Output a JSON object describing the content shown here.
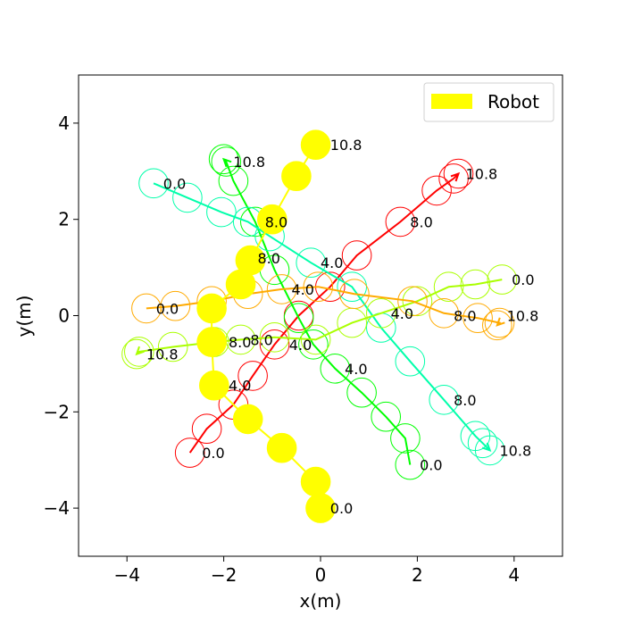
{
  "chart_data": {
    "type": "scatter",
    "xlabel": "x(m)",
    "ylabel": "y(m)",
    "xlim": [
      -5,
      5
    ],
    "ylim": [
      -5,
      5
    ],
    "xticks": [
      -4,
      -2,
      0,
      2,
      4
    ],
    "xtick_labels": [
      "−4",
      "−2",
      "0",
      "2",
      "4"
    ],
    "yticks": [
      -4,
      -2,
      0,
      2,
      4
    ],
    "ytick_labels": [
      "−4",
      "−2",
      "0",
      "2",
      "4"
    ],
    "grid": false,
    "legend": {
      "placement": "top-right",
      "entries": [
        {
          "label": "Robot",
          "color": "#ffff00"
        }
      ]
    },
    "circle_radius": 0.3,
    "robot": {
      "name": "Robot",
      "color": "#ffff00",
      "points": [
        [
          0.0,
          -4.0
        ],
        [
          -0.1,
          -3.45
        ],
        [
          -0.8,
          -2.75
        ],
        [
          -1.5,
          -2.15
        ],
        [
          -2.2,
          -1.45
        ],
        [
          -2.25,
          -0.55
        ],
        [
          -2.25,
          0.15
        ],
        [
          -1.65,
          0.65
        ],
        [
          -1.45,
          1.15
        ],
        [
          -1.0,
          2.0
        ],
        [
          -0.5,
          2.9
        ],
        [
          -0.1,
          3.55
        ]
      ],
      "time_labels": [
        {
          "text": "0.0",
          "x": 0.2,
          "y": -4.0
        },
        {
          "text": "4.0",
          "x": -1.9,
          "y": -1.45
        },
        {
          "text": "8.0",
          "x": -1.9,
          "y": -0.55
        },
        {
          "text": "8.0",
          "x": -1.3,
          "y": 1.2
        },
        {
          "text": "10.8",
          "x": 0.2,
          "y": 3.55
        }
      ]
    },
    "humans": [
      {
        "color": "#ff0000",
        "points": [
          [
            -2.7,
            -2.85
          ],
          [
            -2.35,
            -2.35
          ],
          [
            -1.8,
            -1.85
          ],
          [
            -1.4,
            -1.25
          ],
          [
            -0.95,
            -0.6
          ],
          [
            -0.45,
            0.0
          ],
          [
            0.2,
            0.6
          ],
          [
            0.75,
            1.25
          ],
          [
            1.65,
            1.95
          ],
          [
            2.4,
            2.6
          ],
          [
            2.75,
            2.85
          ],
          [
            2.85,
            2.95
          ]
        ],
        "time_labels": [
          {
            "text": "0.0",
            "x": -2.45,
            "y": -2.85
          },
          {
            "text": "4.0",
            "x": -0.65,
            "y": -0.6
          },
          {
            "text": "8.0",
            "x": 1.85,
            "y": 1.95
          },
          {
            "text": "10.8",
            "x": 3.0,
            "y": 2.95
          }
        ]
      },
      {
        "color": "#00ff00",
        "points": [
          [
            1.85,
            -3.1
          ],
          [
            1.75,
            -2.55
          ],
          [
            1.35,
            -2.1
          ],
          [
            0.85,
            -1.6
          ],
          [
            0.3,
            -1.1
          ],
          [
            -0.15,
            -0.6
          ],
          [
            -0.45,
            -0.05
          ],
          [
            -0.95,
            0.95
          ],
          [
            -1.35,
            1.95
          ],
          [
            -1.8,
            2.8
          ],
          [
            -1.95,
            3.2
          ],
          [
            -2.0,
            3.25
          ]
        ],
        "time_labels": [
          {
            "text": "0.0",
            "x": 2.05,
            "y": -3.1
          },
          {
            "text": "4.0",
            "x": 0.5,
            "y": -1.1
          },
          {
            "text": "8.0",
            "x": -1.15,
            "y": 1.95
          },
          {
            "text": "10.8",
            "x": -1.8,
            "y": 3.2
          }
        ]
      },
      {
        "color": "#00ffaa",
        "points": [
          [
            -3.45,
            2.75
          ],
          [
            -2.75,
            2.45
          ],
          [
            -2.05,
            2.15
          ],
          [
            -1.5,
            1.95
          ],
          [
            -1.05,
            1.65
          ],
          [
            -0.2,
            1.1
          ],
          [
            0.65,
            0.6
          ],
          [
            1.25,
            -0.25
          ],
          [
            1.85,
            -0.95
          ],
          [
            2.55,
            -1.75
          ],
          [
            3.2,
            -2.5
          ],
          [
            3.35,
            -2.65
          ],
          [
            3.5,
            -2.8
          ]
        ],
        "time_labels": [
          {
            "text": "0.0",
            "x": -3.25,
            "y": 2.75
          },
          {
            "text": "4.0",
            "x": 0.0,
            "y": 1.1
          },
          {
            "text": "8.0",
            "x": 2.75,
            "y": -1.75
          },
          {
            "text": "10.8",
            "x": 3.7,
            "y": -2.8
          }
        ]
      },
      {
        "color": "#aaff00",
        "points": [
          [
            3.75,
            0.75
          ],
          [
            3.2,
            0.65
          ],
          [
            2.65,
            0.6
          ],
          [
            2.0,
            0.3
          ],
          [
            1.25,
            0.05
          ],
          [
            0.65,
            -0.15
          ],
          [
            -0.1,
            -0.5
          ],
          [
            -0.95,
            -0.45
          ],
          [
            -1.65,
            -0.5
          ],
          [
            -2.2,
            -0.55
          ],
          [
            -3.05,
            -0.65
          ],
          [
            -3.75,
            -0.75
          ],
          [
            -3.8,
            -0.8
          ]
        ],
        "time_labels": [
          {
            "text": "0.0",
            "x": 3.95,
            "y": 0.75
          },
          {
            "text": "4.0",
            "x": 1.45,
            "y": 0.05
          },
          {
            "text": "8.0",
            "x": -1.45,
            "y": -0.5
          },
          {
            "text": "10.8",
            "x": -3.6,
            "y": -0.8
          }
        ]
      },
      {
        "color": "#ffaa00",
        "points": [
          [
            -3.6,
            0.15
          ],
          [
            -3.0,
            0.2
          ],
          [
            -2.25,
            0.3
          ],
          [
            -1.5,
            0.45
          ],
          [
            -0.8,
            0.55
          ],
          [
            -0.05,
            0.6
          ],
          [
            0.7,
            0.45
          ],
          [
            1.9,
            0.3
          ],
          [
            2.55,
            0.05
          ],
          [
            3.25,
            -0.05
          ],
          [
            3.7,
            -0.15
          ],
          [
            3.65,
            -0.2
          ]
        ],
        "time_labels": [
          {
            "text": "0.0",
            "x": -3.4,
            "y": 0.15
          },
          {
            "text": "4.0",
            "x": -0.6,
            "y": 0.55
          },
          {
            "text": "8.0",
            "x": 2.75,
            "y": 0.0
          },
          {
            "text": "10.8",
            "x": 3.85,
            "y": 0.0
          }
        ]
      }
    ]
  }
}
